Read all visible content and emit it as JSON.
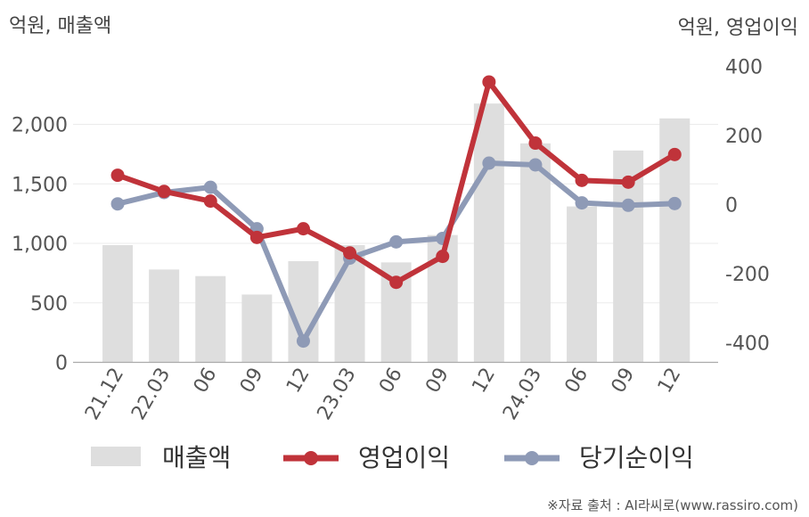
{
  "chart_data": {
    "type": "bar",
    "left_unit": "억원, 매출액",
    "right_unit": "억원, 영업이익",
    "categories": [
      "21.12",
      "22.03",
      "06",
      "09",
      "12",
      "23.03",
      "06",
      "09",
      "12",
      "24.03",
      "06",
      "09",
      "12"
    ],
    "left_axis": {
      "ylim": [
        0,
        2400
      ],
      "ticks": [
        0,
        500,
        1000,
        1500,
        2000
      ],
      "tick_labels": [
        "0",
        "500",
        "1,000",
        "1,500",
        "2,000"
      ]
    },
    "right_axis": {
      "ylim": [
        -500,
        400
      ],
      "ticks": [
        -400,
        -200,
        0,
        200,
        400
      ],
      "tick_labels": [
        "-400",
        "-200",
        "0",
        "200",
        "400"
      ]
    },
    "series": [
      {
        "name": "매출액",
        "type": "bar",
        "axis": "left",
        "color": "#dedede",
        "values": [
          985,
          780,
          725,
          570,
          850,
          985,
          840,
          1070,
          2175,
          1840,
          1310,
          1780,
          2050
        ]
      },
      {
        "name": "영업이익",
        "type": "line",
        "axis": "right",
        "color": "#c0333a",
        "values": [
          85,
          38,
          10,
          -95,
          -70,
          -140,
          -225,
          -150,
          355,
          178,
          70,
          65,
          145
        ]
      },
      {
        "name": "당기순이익",
        "type": "line",
        "axis": "right",
        "color": "#8e9ab6",
        "values": [
          2,
          35,
          50,
          -70,
          -395,
          -155,
          -108,
          -98,
          120,
          115,
          5,
          -2,
          3
        ]
      }
    ],
    "grid": true,
    "legend_position": "bottom"
  },
  "source_text": "※자료 출처 : AI라씨로(www.rassiro.com)"
}
